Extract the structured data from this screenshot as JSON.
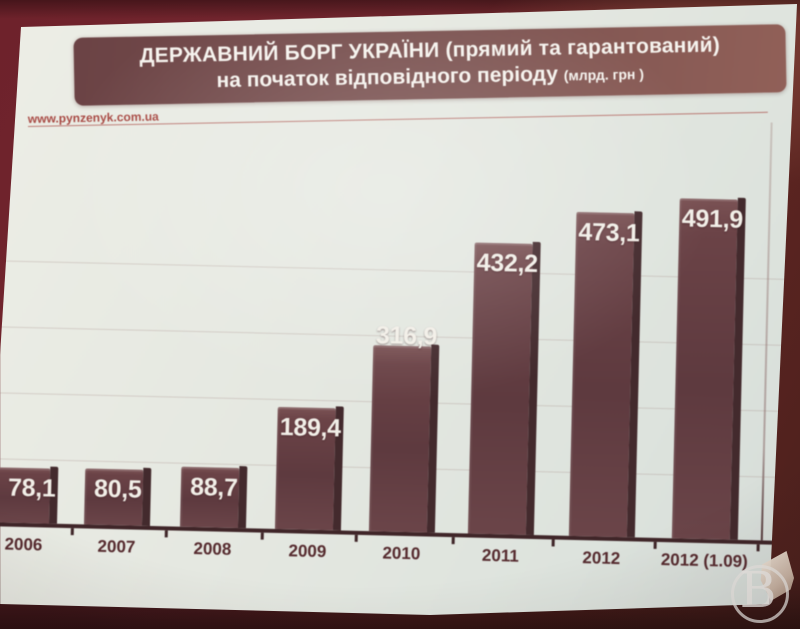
{
  "photo": {
    "source_watermark": "www.pynzenyk.com.ua",
    "corner_logo_letter": "В"
  },
  "slide": {
    "title_line1": "ДЕРЖАВНИЙ БОРГ УКРАЇНИ (прямий та гарантований)",
    "title_line2": "на початок відповідного періоду",
    "title_line2_unit": "(млрд. грн )"
  },
  "chart_data": {
    "type": "bar",
    "title": "ДЕРЖАВНИЙ БОРГ УКРАЇНИ (прямий та гарантований) на початок відповідного періоду",
    "unit": "млрд. грн",
    "categories": [
      "2006",
      "2007",
      "2008",
      "2009",
      "2010",
      "2011",
      "2012",
      "2012 (1.09)"
    ],
    "values": [
      78.1,
      80.5,
      88.7,
      189.4,
      316.9,
      432.2,
      473.1,
      491.9
    ],
    "value_labels": [
      "78,1",
      "80,5",
      "88,7",
      "189,4",
      "316,9",
      "432,2",
      "473,1",
      "491,9"
    ],
    "xlabel": "",
    "ylabel": "",
    "ylim": [
      0,
      500
    ],
    "grid": "faint horizontal lines every ~100",
    "legend": "none"
  },
  "colors": {
    "wall": "#6e222b",
    "slide_background": "#e5e8e1",
    "title_band": "#7c5351",
    "bar_fill": "#633e43",
    "bar_shadow": "#432a2d",
    "axis": "#3f2528",
    "value_label_text": "#f2efe8",
    "year_label_text": "#562b2f",
    "watermark_text": "#a84a44"
  }
}
